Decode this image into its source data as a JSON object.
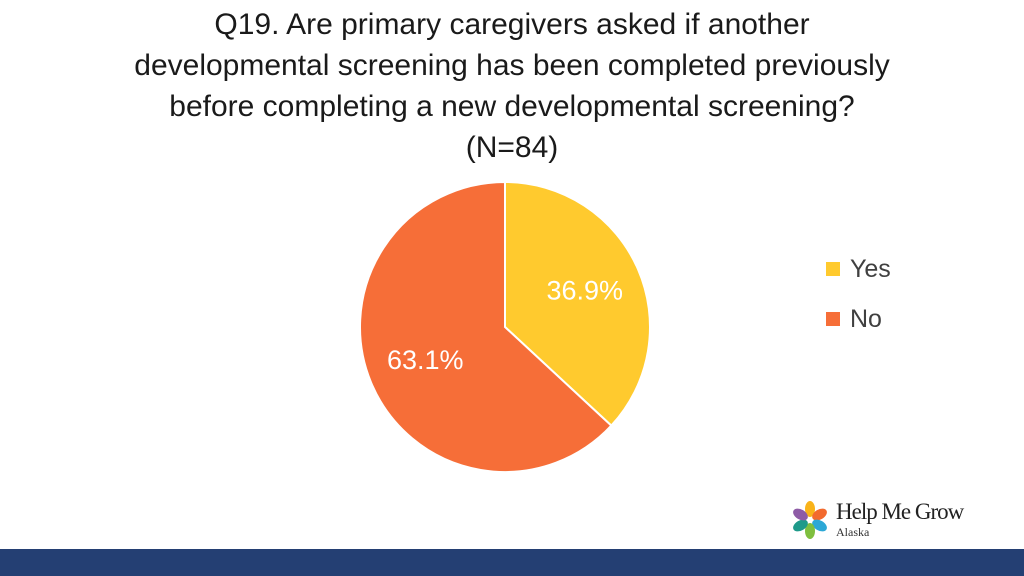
{
  "title": {
    "lines": [
      "Q19. Are primary caregivers asked if another",
      "developmental screening has been completed previously",
      "before completing a new developmental screening?",
      "(N=84)"
    ]
  },
  "chart_data": {
    "type": "pie",
    "title": "Q19. Are primary caregivers asked if another developmental screening has been completed previously before completing a new developmental screening? (N=84)",
    "categories": [
      "Yes",
      "No"
    ],
    "values": [
      36.9,
      63.1
    ],
    "labels": [
      "36.9%",
      "63.1%"
    ],
    "colors": [
      "#FFCA2E",
      "#F66E38"
    ],
    "legend_position": "right"
  },
  "legend": [
    {
      "label": "Yes",
      "color": "#FFCA2E"
    },
    {
      "label": "No",
      "color": "#F66E38"
    }
  ],
  "logo": {
    "name": "Help Me Grow",
    "sub": "Alaska",
    "petal_colors": [
      "#F9B31A",
      "#F26A2E",
      "#2CA8D6",
      "#7FBF3F",
      "#1E9A8A",
      "#8E5BA6"
    ]
  },
  "footer": {
    "color": "#243F73"
  }
}
